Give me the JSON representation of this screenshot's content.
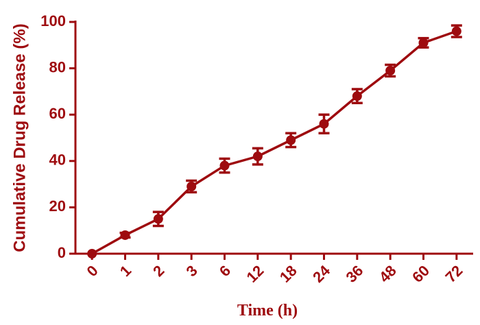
{
  "chart_data": {
    "type": "line",
    "x_label": "Time (h)",
    "y_label": "Cumulative Drug Release (%)",
    "categories": [
      "0",
      "1",
      "2",
      "3",
      "6",
      "12",
      "18",
      "24",
      "36",
      "48",
      "60",
      "72"
    ],
    "values": [
      0,
      8,
      15,
      29,
      38,
      42,
      49,
      56,
      68,
      79,
      91,
      96
    ],
    "errors": [
      0,
      1,
      3,
      2.5,
      3,
      3.5,
      3,
      4,
      3,
      2.5,
      2,
      2.5
    ],
    "color": "#9e0b0f",
    "ylim": [
      0,
      100
    ],
    "yticks": [
      0,
      20,
      40,
      60,
      80,
      100
    ],
    "grid": false
  }
}
